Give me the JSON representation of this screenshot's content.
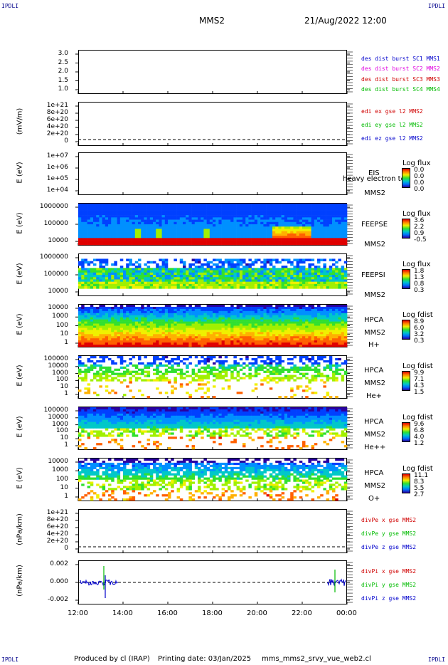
{
  "header": {
    "corner_tl": "IPDLI",
    "corner_tr": "IPDLI",
    "corner_bl": "IPDLI",
    "corner_br": "IPDLI",
    "spacecraft": "MMS2",
    "datetime": "21/Aug/2022 12:00"
  },
  "footer": {
    "produced_by": "Produced by cl (IRAP)",
    "printing_date": "Printing date: 03/Jan/2025",
    "script": "mms_mms2_srvy_vue_web2.cl"
  },
  "colors": {
    "mms1": "#0000cc",
    "mms2": "#e000e0",
    "mms3": "#d00000",
    "mms4": "#00bb00",
    "x": "#d00000",
    "y": "#00bb00",
    "z": "#0000cc"
  },
  "chart_data": [
    {
      "type": "line",
      "ylim": [
        0.8,
        3.2
      ],
      "yticks": [
        "3.0",
        "2.5",
        "2.0",
        "1.5",
        "1.0"
      ],
      "legend": [
        "des dist burst SC1 MMS1",
        "des dist burst SC2 MMS2",
        "des dist burst SC3 MMS3",
        "des dist burst SC4 MMS4"
      ],
      "series": []
    },
    {
      "type": "line",
      "ylabel": "(mV/m)",
      "yticks": [
        "1e+21",
        "8e+20",
        "6e+20",
        "4e+20",
        "2e+20",
        "0"
      ],
      "legend": [
        "edi ex gse l2 MMS2",
        "edi ey gse l2 MMS2",
        "edi ez gse l2 MMS2"
      ],
      "series": []
    },
    {
      "type": "heatmap",
      "ylabel": "E (eV)",
      "yscale": "log",
      "yticks": [
        "1e+07",
        "1e+06",
        "1e+05",
        "1e+04"
      ],
      "instrument": [
        "EIS",
        "MMS2"
      ],
      "overlay_text": "heavy electron to",
      "colorbar_title": "Log flux",
      "colorbar_values": [
        "0.0",
        "0.0",
        "0.0",
        "0.0"
      ]
    },
    {
      "type": "heatmap",
      "ylabel": "E (eV)",
      "yscale": "log",
      "yticks": [
        "1000000",
        "100000",
        "10000"
      ],
      "instrument": [
        "FEEPSE",
        "MMS2"
      ],
      "colorbar_title": "Log flux",
      "colorbar_values": [
        "3.6",
        "2.2",
        "0.9",
        "-0.5"
      ]
    },
    {
      "type": "heatmap",
      "ylabel": "E (eV)",
      "yscale": "log",
      "yticks": [
        "1000000",
        "100000",
        "10000"
      ],
      "instrument": [
        "FEEPSI",
        "MMS2"
      ],
      "colorbar_title": "Log flux",
      "colorbar_values": [
        "1.8",
        "1.3",
        "0.8",
        "0.3"
      ]
    },
    {
      "type": "heatmap",
      "ylabel": "E (eV)",
      "yscale": "log",
      "yticks": [
        "10000",
        "1000",
        "100",
        "10",
        "1"
      ],
      "instrument": [
        "HPCA",
        "MMS2",
        "H+"
      ],
      "colorbar_title": "Log fdist",
      "colorbar_values": [
        "8.9",
        "6.0",
        "3.2",
        "0.3"
      ]
    },
    {
      "type": "heatmap",
      "ylabel": "E (eV)",
      "yscale": "log",
      "yticks": [
        "100000",
        "10000",
        "1000",
        "100",
        "10",
        "1"
      ],
      "instrument": [
        "HPCA",
        "MMS2",
        "He+"
      ],
      "colorbar_title": "Log fdist",
      "colorbar_values": [
        "9.9",
        "7.1",
        "4.3",
        "1.5"
      ]
    },
    {
      "type": "heatmap",
      "ylabel": "E (eV)",
      "yscale": "log",
      "yticks": [
        "100000",
        "10000",
        "1000",
        "100",
        "10",
        "1"
      ],
      "instrument": [
        "HPCA",
        "MMS2",
        "He++"
      ],
      "colorbar_title": "Log fdist",
      "colorbar_values": [
        "9.6",
        "6.8",
        "4.0",
        "1.2"
      ]
    },
    {
      "type": "heatmap",
      "ylabel": "E (eV)",
      "yscale": "log",
      "yticks": [
        "10000",
        "1000",
        "100",
        "10",
        "1"
      ],
      "instrument": [
        "HPCA",
        "MMS2",
        "O+"
      ],
      "colorbar_title": "Log fdist",
      "colorbar_values": [
        "11.1",
        "8.3",
        "5.5",
        "2.7"
      ]
    },
    {
      "type": "line",
      "ylabel": "(nPa/km)",
      "yticks": [
        "1e+21",
        "8e+20",
        "6e+20",
        "4e+20",
        "2e+20",
        "0"
      ],
      "legend": [
        "divPe x gse MMS2",
        "divPe y gse MMS2",
        "divPe z gse MMS2"
      ],
      "series": []
    },
    {
      "type": "line",
      "ylabel": "(nPa/km)",
      "yticks": [
        "0.002",
        "0.000",
        "-0.002"
      ],
      "ylim": [
        -0.003,
        0.003
      ],
      "legend": [
        "divPi x gse MMS2",
        "divPi y gse MMS2",
        "divPi z gse MMS2"
      ],
      "xticks": [
        "12:00",
        "14:00",
        "16:00",
        "18:00",
        "20:00",
        "22:00",
        "00:00"
      ]
    }
  ]
}
